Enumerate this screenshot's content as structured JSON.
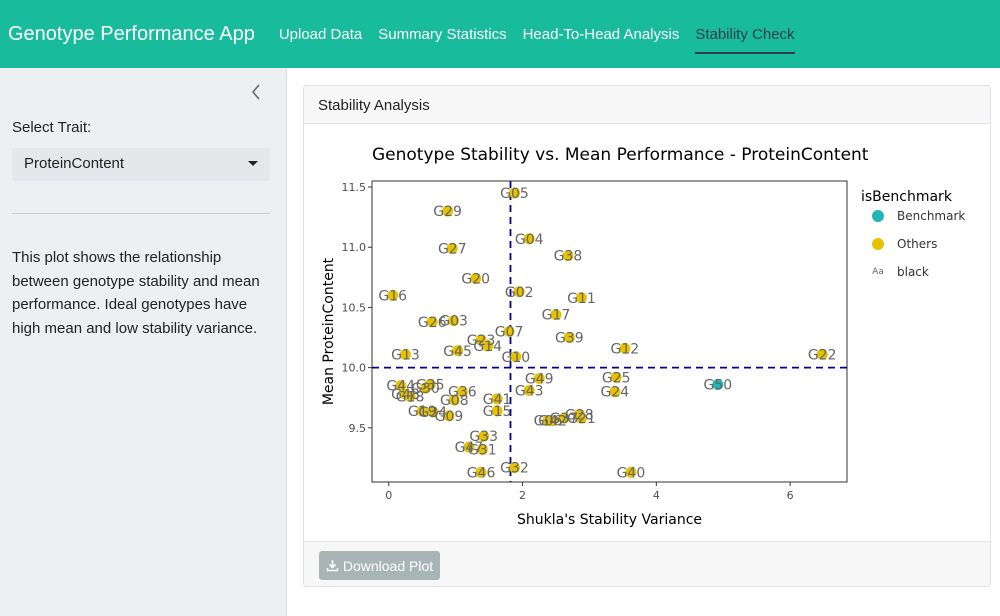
{
  "app": {
    "title": "Genotype Performance App"
  },
  "nav": {
    "tabs": [
      "Upload Data",
      "Summary Statistics",
      "Head-To-Head Analysis",
      "Stability Check"
    ],
    "active": "Stability Check"
  },
  "sidebar": {
    "trait_label": "Select Trait:",
    "trait_value": "ProteinContent",
    "description": "This plot shows the relationship between genotype stability and mean performance. Ideal genotypes have high mean and low stability variance."
  },
  "card": {
    "header": "Stability Analysis",
    "download_label": "Download Plot"
  },
  "colors": {
    "navbar": "#18bc9c",
    "others": "#e6c200",
    "benchmark": "#20b6b6",
    "ref_line": "#00008b"
  },
  "chart_data": {
    "type": "scatter",
    "title": "Genotype Stability vs. Mean Performance - ProteinContent",
    "xlabel": "Shukla's Stability Variance",
    "ylabel": "Mean ProteinContent",
    "xlim": [
      -0.25,
      6.85
    ],
    "ylim": [
      9.05,
      11.55
    ],
    "xticks": [
      0,
      2,
      4,
      6
    ],
    "yticks": [
      9.5,
      10.0,
      10.5,
      11.0,
      11.5
    ],
    "ref_lines": {
      "x": 1.82,
      "y": 10.0
    },
    "legend": {
      "title": "isBenchmark",
      "position": "right",
      "entries": [
        "Benchmark",
        "Others",
        "black"
      ]
    },
    "points": [
      {
        "label": "G05",
        "x": 1.88,
        "y": 11.45,
        "group": "Others"
      },
      {
        "label": "G29",
        "x": 0.88,
        "y": 11.3,
        "group": "Others"
      },
      {
        "label": "G04",
        "x": 2.1,
        "y": 11.07,
        "group": "Others"
      },
      {
        "label": "G27",
        "x": 0.95,
        "y": 10.99,
        "group": "Others"
      },
      {
        "label": "G38",
        "x": 2.68,
        "y": 10.93,
        "group": "Others"
      },
      {
        "label": "G20",
        "x": 1.3,
        "y": 10.74,
        "group": "Others"
      },
      {
        "label": "G02",
        "x": 1.95,
        "y": 10.63,
        "group": "Others"
      },
      {
        "label": "G16",
        "x": 0.06,
        "y": 10.6,
        "group": "Others"
      },
      {
        "label": "G11",
        "x": 2.88,
        "y": 10.58,
        "group": "Others"
      },
      {
        "label": "G17",
        "x": 2.5,
        "y": 10.44,
        "group": "Others"
      },
      {
        "label": "G26",
        "x": 0.65,
        "y": 10.38,
        "group": "Others"
      },
      {
        "label": "G03",
        "x": 0.97,
        "y": 10.39,
        "group": "Others"
      },
      {
        "label": "G07",
        "x": 1.8,
        "y": 10.3,
        "group": "Others"
      },
      {
        "label": "G39",
        "x": 2.7,
        "y": 10.25,
        "group": "Others"
      },
      {
        "label": "G23",
        "x": 1.38,
        "y": 10.23,
        "group": "Others"
      },
      {
        "label": "G14",
        "x": 1.48,
        "y": 10.18,
        "group": "Others"
      },
      {
        "label": "G12",
        "x": 3.53,
        "y": 10.16,
        "group": "Others"
      },
      {
        "label": "G45",
        "x": 1.03,
        "y": 10.14,
        "group": "Others"
      },
      {
        "label": "G13",
        "x": 0.25,
        "y": 10.11,
        "group": "Others"
      },
      {
        "label": "G10",
        "x": 1.9,
        "y": 10.09,
        "group": "Others"
      },
      {
        "label": "G22",
        "x": 6.48,
        "y": 10.11,
        "group": "Others"
      },
      {
        "label": "G49",
        "x": 2.25,
        "y": 9.91,
        "group": "Others"
      },
      {
        "label": "G25",
        "x": 3.4,
        "y": 9.92,
        "group": "Others"
      },
      {
        "label": "G50",
        "x": 4.92,
        "y": 9.86,
        "group": "Benchmark"
      },
      {
        "label": "G44",
        "x": 0.18,
        "y": 9.85,
        "group": "Others"
      },
      {
        "label": "G35",
        "x": 0.62,
        "y": 9.86,
        "group": "Others"
      },
      {
        "label": "G43",
        "x": 2.1,
        "y": 9.81,
        "group": "Others"
      },
      {
        "label": "G24",
        "x": 3.38,
        "y": 9.8,
        "group": "Others"
      },
      {
        "label": "G30",
        "x": 0.55,
        "y": 9.83,
        "group": "Others"
      },
      {
        "label": "G36",
        "x": 1.1,
        "y": 9.8,
        "group": "Others"
      },
      {
        "label": "G48",
        "x": 0.25,
        "y": 9.78,
        "group": "Others"
      },
      {
        "label": "G18",
        "x": 0.32,
        "y": 9.76,
        "group": "Others"
      },
      {
        "label": "G41",
        "x": 1.62,
        "y": 9.74,
        "group": "Others"
      },
      {
        "label": "G08",
        "x": 0.98,
        "y": 9.73,
        "group": "Others"
      },
      {
        "label": "G15",
        "x": 1.62,
        "y": 9.64,
        "group": "Others"
      },
      {
        "label": "G19",
        "x": 0.5,
        "y": 9.64,
        "group": "Others"
      },
      {
        "label": "G34",
        "x": 0.66,
        "y": 9.63,
        "group": "Others"
      },
      {
        "label": "G09",
        "x": 0.9,
        "y": 9.6,
        "group": "Others"
      },
      {
        "label": "G28",
        "x": 2.85,
        "y": 9.61,
        "group": "Others"
      },
      {
        "label": "G21",
        "x": 2.88,
        "y": 9.58,
        "group": "Others"
      },
      {
        "label": "G37",
        "x": 2.62,
        "y": 9.58,
        "group": "Others"
      },
      {
        "label": "G42",
        "x": 2.45,
        "y": 9.56,
        "group": "Others"
      },
      {
        "label": "G06",
        "x": 2.38,
        "y": 9.56,
        "group": "Others"
      },
      {
        "label": "G33",
        "x": 1.42,
        "y": 9.43,
        "group": "Others"
      },
      {
        "label": "G47",
        "x": 1.2,
        "y": 9.34,
        "group": "Others"
      },
      {
        "label": "G31",
        "x": 1.4,
        "y": 9.32,
        "group": "Others"
      },
      {
        "label": "G32",
        "x": 1.88,
        "y": 9.17,
        "group": "Others"
      },
      {
        "label": "G46",
        "x": 1.38,
        "y": 9.13,
        "group": "Others"
      },
      {
        "label": "G40",
        "x": 3.62,
        "y": 9.13,
        "group": "Others"
      }
    ]
  }
}
